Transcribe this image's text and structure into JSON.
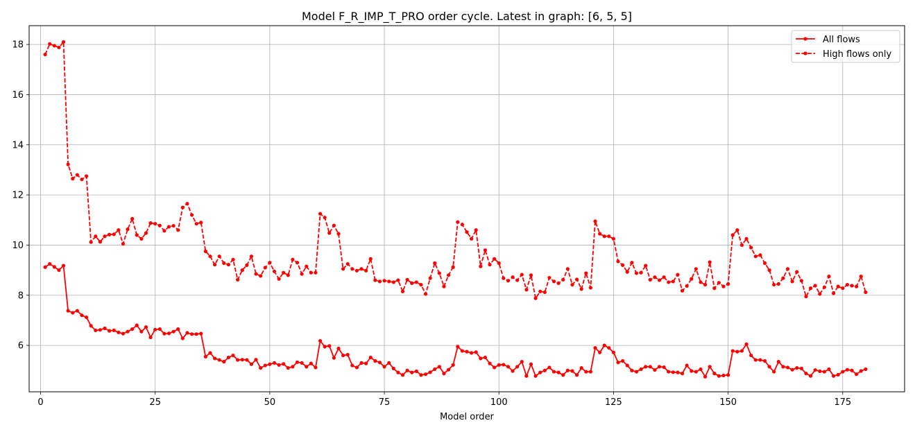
{
  "chart_data": {
    "type": "line",
    "title": "Model F_R_IMP_T_PRO order cycle. Latest in graph: [6, 5, 5]",
    "xlabel": "Model order",
    "ylabel": "",
    "xlim": [
      -2.5,
      188.5
    ],
    "ylim": [
      4.15,
      18.75
    ],
    "xticks": [
      0,
      25,
      50,
      75,
      100,
      125,
      150,
      175
    ],
    "yticks": [
      6,
      8,
      10,
      12,
      14,
      16,
      18
    ],
    "grid": true,
    "legend_position": "top-right",
    "series": [
      {
        "name": "All flows",
        "color": "#ff0000",
        "line_style": "solid",
        "marker": "circle",
        "x_start": 1,
        "values": [
          9.12,
          9.25,
          9.13,
          9.0,
          9.18,
          7.38,
          7.3,
          7.38,
          7.2,
          7.12,
          6.78,
          6.6,
          6.62,
          6.68,
          6.58,
          6.6,
          6.52,
          6.47,
          6.55,
          6.65,
          6.8,
          6.55,
          6.73,
          6.32,
          6.63,
          6.65,
          6.47,
          6.48,
          6.55,
          6.65,
          6.28,
          6.5,
          6.45,
          6.45,
          6.47,
          5.55,
          5.7,
          5.48,
          5.42,
          5.35,
          5.52,
          5.6,
          5.42,
          5.43,
          5.42,
          5.25,
          5.43,
          5.1,
          5.2,
          5.25,
          5.3,
          5.22,
          5.26,
          5.1,
          5.15,
          5.33,
          5.3,
          5.15,
          5.28,
          5.12,
          6.18,
          5.95,
          5.98,
          5.5,
          5.88,
          5.6,
          5.63,
          5.2,
          5.12,
          5.3,
          5.28,
          5.52,
          5.38,
          5.32,
          5.15,
          5.3,
          5.08,
          4.92,
          4.82,
          5.0,
          4.92,
          4.97,
          4.82,
          4.85,
          4.93,
          5.05,
          5.15,
          4.88,
          5.03,
          5.22,
          5.95,
          5.78,
          5.75,
          5.7,
          5.73,
          5.48,
          5.52,
          5.28,
          5.12,
          5.22,
          5.23,
          5.15,
          4.98,
          5.15,
          5.35,
          4.78,
          5.25,
          4.78,
          4.92,
          5.0,
          5.12,
          4.95,
          4.92,
          4.82,
          5.0,
          4.98,
          4.82,
          5.1,
          4.95,
          4.95,
          5.9,
          5.72,
          6.0,
          5.9,
          5.72,
          5.32,
          5.38,
          5.2,
          5.0,
          4.95,
          5.05,
          5.15,
          5.15,
          5.02,
          5.15,
          5.13,
          4.95,
          4.93,
          4.92,
          4.88,
          5.2,
          4.98,
          4.95,
          5.05,
          4.75,
          5.15,
          4.88,
          4.78,
          4.8,
          4.82,
          5.78,
          5.75,
          5.78,
          6.05,
          5.6,
          5.42,
          5.42,
          5.38,
          5.15,
          4.95,
          5.35,
          5.15,
          5.12,
          5.03,
          5.1,
          5.08,
          4.88,
          4.78,
          5.02,
          4.97,
          4.95,
          5.05,
          4.78,
          4.83,
          4.95,
          5.03,
          5.0,
          4.85,
          4.98,
          5.05
        ]
      },
      {
        "name": "High flows only",
        "color": "#ff0000",
        "line_style": "dashed",
        "marker": "circle",
        "x_start": 1,
        "values": [
          17.6,
          18.02,
          17.95,
          17.88,
          18.1,
          13.22,
          12.65,
          12.8,
          12.62,
          12.75,
          10.12,
          10.35,
          10.13,
          10.35,
          10.42,
          10.43,
          10.6,
          10.05,
          10.63,
          11.05,
          10.4,
          10.25,
          10.48,
          10.88,
          10.85,
          10.78,
          10.57,
          10.73,
          10.77,
          10.6,
          11.5,
          11.65,
          11.2,
          10.85,
          10.9,
          9.75,
          9.55,
          9.22,
          9.55,
          9.28,
          9.22,
          9.42,
          8.62,
          9.0,
          9.2,
          9.55,
          8.85,
          8.77,
          9.1,
          9.3,
          8.95,
          8.65,
          8.9,
          8.8,
          9.42,
          9.3,
          8.85,
          9.15,
          8.9,
          8.9,
          11.25,
          11.1,
          10.48,
          10.78,
          10.45,
          9.05,
          9.25,
          9.05,
          8.98,
          9.05,
          8.98,
          9.45,
          8.6,
          8.55,
          8.58,
          8.55,
          8.52,
          8.6,
          8.15,
          8.62,
          8.48,
          8.52,
          8.42,
          8.05,
          8.68,
          9.28,
          8.88,
          8.35,
          8.8,
          9.12,
          10.92,
          10.82,
          10.52,
          10.25,
          10.6,
          9.15,
          9.8,
          9.22,
          9.45,
          9.28,
          8.68,
          8.58,
          8.72,
          8.6,
          8.82,
          8.22,
          8.8,
          7.88,
          8.15,
          8.12,
          8.7,
          8.55,
          8.48,
          8.62,
          9.05,
          8.42,
          8.63,
          8.25,
          8.88,
          8.3,
          10.95,
          10.45,
          10.35,
          10.35,
          10.25,
          9.35,
          9.2,
          8.93,
          9.3,
          8.88,
          8.9,
          9.18,
          8.62,
          8.72,
          8.6,
          8.72,
          8.52,
          8.55,
          8.82,
          8.18,
          8.37,
          8.65,
          9.05,
          8.52,
          8.42,
          9.32,
          8.28,
          8.5,
          8.35,
          8.45,
          10.4,
          10.6,
          10.0,
          10.25,
          9.9,
          9.55,
          9.6,
          9.28,
          9.0,
          8.42,
          8.45,
          8.68,
          9.05,
          8.55,
          8.93,
          8.58,
          7.95,
          8.28,
          8.38,
          8.05,
          8.32,
          8.75,
          8.08,
          8.35,
          8.28,
          8.42,
          8.38,
          8.35,
          8.75,
          8.12
        ]
      }
    ]
  }
}
